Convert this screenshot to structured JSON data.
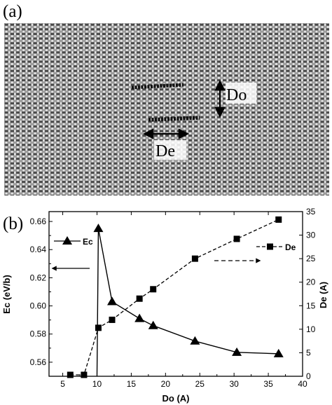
{
  "panel_a": {
    "label": "(a)",
    "do_label": "Do",
    "de_label": "De"
  },
  "chart_data": {
    "type": "line",
    "panel_label": "(b)",
    "xlabel": "Do (A)",
    "xlim": [
      3,
      40
    ],
    "xticks": [
      5,
      10,
      15,
      20,
      25,
      30,
      35,
      40
    ],
    "y_left": {
      "label": "Ec (eV/b)",
      "lim": [
        0.55,
        0.667
      ],
      "ticks": [
        0.56,
        0.58,
        0.6,
        0.62,
        0.64,
        0.66
      ],
      "tick_labels": [
        "0.56",
        "0.58",
        "0.60",
        "0.62",
        "0.64",
        "0.66"
      ]
    },
    "y_right": {
      "label": "De (A)",
      "lim": [
        0,
        35
      ],
      "ticks": [
        0,
        5,
        10,
        15,
        20,
        25,
        30,
        35
      ],
      "tick_labels": [
        "0",
        "5",
        "10",
        "15",
        "20",
        "25",
        "30",
        "35"
      ]
    },
    "series": [
      {
        "name": "Ec",
        "axis": "left",
        "marker": "triangle",
        "line": "solid",
        "vertical_drop_at_x": 10,
        "x": [
          10.2,
          12.2,
          16.2,
          18.2,
          24.3,
          30.4,
          36.5
        ],
        "y": [
          0.655,
          0.603,
          0.591,
          0.586,
          0.575,
          0.567,
          0.566
        ]
      },
      {
        "name": "De",
        "axis": "right",
        "marker": "square",
        "line": "dashed",
        "x": [
          6.1,
          8.1,
          10.2,
          12.2,
          16.2,
          18.2,
          24.3,
          30.4,
          36.5
        ],
        "y": [
          0.3,
          0.3,
          10.3,
          12.0,
          16.5,
          18.5,
          25.0,
          29.2,
          33.3
        ]
      }
    ],
    "annotations": {
      "left_arrow": "points to left axis (Ec)",
      "right_arrow": "points to right axis (De)"
    }
  }
}
